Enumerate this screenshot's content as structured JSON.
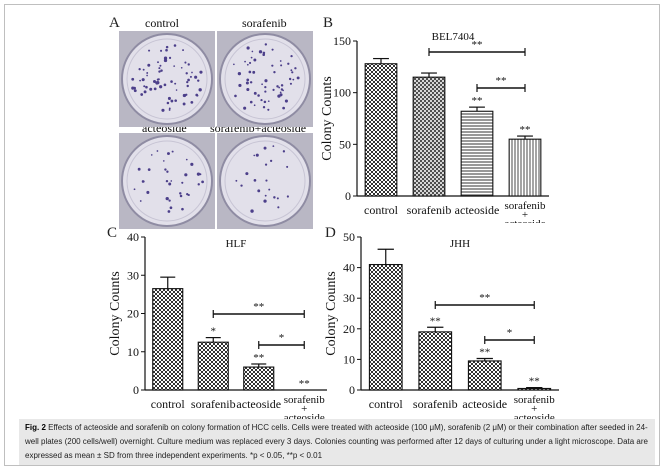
{
  "panel_a": {
    "letter": "A",
    "labels": [
      "control",
      "sorafenib",
      "acteoside",
      "sorafenib+acteoside"
    ]
  },
  "panel_b": {
    "letter": "B"
  },
  "panel_c": {
    "letter": "C"
  },
  "panel_d": {
    "letter": "D"
  },
  "caption": {
    "fig_label": "Fig. 2",
    "text": "Effects of acteoside and sorafenib on colony formation of HCC cells. Cells were treated with acteoside (100 μM), sorafenib (2 μM) or their combination after seeded in 24-well plates (200 cells/well) overnight. Culture medium was replaced every 3 days. Colonies counting was performed after 12 days of culturing under a light microscope. Data are expressed as mean ± SD from three independent experiments. *p < 0.05, **p < 0.01"
  },
  "chart_data": [
    {
      "type": "bar",
      "title": "BEL7404",
      "ylabel": "Colony Counts",
      "ylim": [
        0,
        150
      ],
      "yticks": [
        0,
        50,
        100,
        150
      ],
      "categories": [
        "control",
        "sorafenib",
        "acteoside",
        "sorafenib\n+\nacteoside"
      ],
      "values": [
        128,
        115,
        82,
        55
      ],
      "errors": [
        5,
        4,
        4,
        3
      ],
      "marks": [
        "",
        "",
        "**",
        "**"
      ],
      "comparisons": [
        {
          "from": 1,
          "to": 3,
          "label": "**"
        },
        {
          "from": 2,
          "to": 3,
          "label": "**"
        }
      ],
      "patterns": [
        "checker",
        "hatch",
        "horizontal",
        "vertical"
      ]
    },
    {
      "type": "bar",
      "title": "HLF",
      "ylabel": "Colony Counts",
      "ylim": [
        0,
        40
      ],
      "yticks": [
        0,
        10,
        20,
        30,
        40
      ],
      "categories": [
        "control",
        "sorafenib",
        "acteoside",
        "sorafenib\n+\nacteoside"
      ],
      "values": [
        26.5,
        12.5,
        6,
        0
      ],
      "errors": [
        3,
        1.2,
        0.8,
        0
      ],
      "marks": [
        "",
        "*",
        "**",
        "**"
      ],
      "comparisons": [
        {
          "from": 1,
          "to": 3,
          "label": "**"
        },
        {
          "from": 2,
          "to": 3,
          "label": "*"
        }
      ],
      "patterns": [
        "checker",
        "checker",
        "checker",
        "checker"
      ]
    },
    {
      "type": "bar",
      "title": "JHH",
      "ylabel": "Colony Counts",
      "ylim": [
        0,
        50
      ],
      "yticks": [
        0,
        10,
        20,
        30,
        40,
        50
      ],
      "categories": [
        "control",
        "sorafenib",
        "acteoside",
        "sorafenib\n+\nacteoside"
      ],
      "values": [
        41,
        19,
        9.5,
        0.5
      ],
      "errors": [
        5,
        1.5,
        0.8,
        0.3
      ],
      "marks": [
        "",
        "**",
        "**",
        "**"
      ],
      "comparisons": [
        {
          "from": 1,
          "to": 3,
          "label": "**"
        },
        {
          "from": 2,
          "to": 3,
          "label": "*"
        }
      ],
      "patterns": [
        "checker",
        "checker",
        "checker",
        "checker"
      ]
    }
  ]
}
